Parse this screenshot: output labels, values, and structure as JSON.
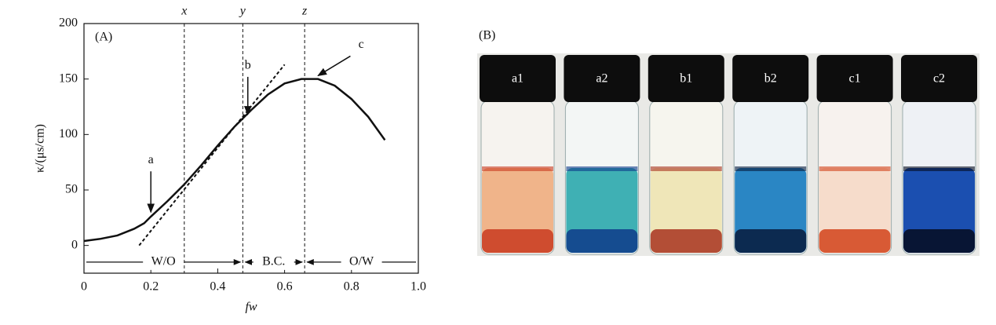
{
  "chart_data": {
    "type": "line",
    "panel_label": "(A)",
    "x_label": "fw",
    "y_label": "κ/(μs/cm)",
    "x": [
      0,
      0.05,
      0.1,
      0.15,
      0.18,
      0.2,
      0.25,
      0.3,
      0.35,
      0.4,
      0.45,
      0.5,
      0.55,
      0.6,
      0.65,
      0.7,
      0.75,
      0.8,
      0.85,
      0.9
    ],
    "series": [
      {
        "color": "#111111",
        "values": [
          4,
          6,
          9,
          15,
          20,
          26,
          40,
          55,
          72,
          90,
          107,
          122,
          136,
          146,
          150,
          150,
          144,
          132,
          116,
          95
        ]
      }
    ],
    "tangent": {
      "x": [
        0.165,
        0.6
      ],
      "values": [
        0,
        163
      ]
    },
    "xlim": [
      0,
      1
    ],
    "ylim": [
      -25,
      200
    ],
    "xticks": [
      0,
      0.2,
      0.4,
      0.6,
      0.8,
      {
        "value": 1,
        "label": "1.0"
      }
    ],
    "yticks": [
      0,
      50,
      100,
      150,
      200
    ],
    "vlines": [
      {
        "value": 0.3,
        "label": "x"
      },
      {
        "value": 0.475,
        "label": "y"
      },
      {
        "value": 0.66,
        "label": "z"
      }
    ],
    "annotations": [
      {
        "label": "a",
        "x": 0.2,
        "y": 30
      },
      {
        "label": "b",
        "x": 0.49,
        "y": 118
      },
      {
        "label": "c",
        "x": 0.7,
        "y": 153
      }
    ],
    "regions": [
      "W/O",
      "B.C.",
      "O/W"
    ],
    "region_level": -15
  },
  "photo_panel": {
    "label": "(B)",
    "vials": [
      "a1",
      "a2",
      "b1",
      "b2",
      "c1",
      "c2"
    ]
  }
}
